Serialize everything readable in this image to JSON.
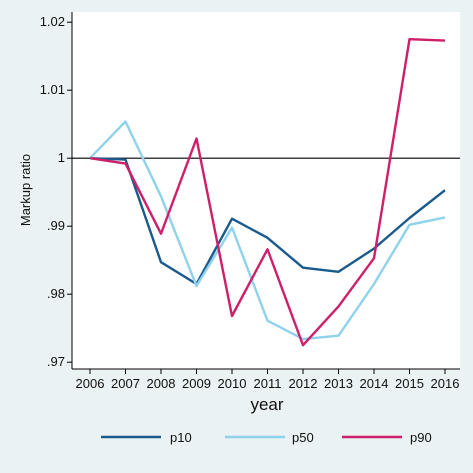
{
  "chart_data": {
    "type": "line",
    "xlabel": "year",
    "ylabel": "Markup ratio",
    "x": [
      2006,
      2007,
      2008,
      2009,
      2010,
      2011,
      2012,
      2013,
      2014,
      2015,
      2016
    ],
    "xticks": [
      "2006",
      "2007",
      "2008",
      "2009",
      "2010",
      "2011",
      "2012",
      "2013",
      "2014",
      "2015",
      "2016"
    ],
    "yticks": [
      ".97",
      ".98",
      ".99",
      "1",
      "1.01",
      "1.02"
    ],
    "ytick_values": [
      0.97,
      0.98,
      0.99,
      1.0,
      1.01,
      1.02
    ],
    "ylim": [
      0.969,
      1.0215
    ],
    "xlim": [
      2006,
      2016
    ],
    "reference_line": 1.0,
    "grid": false,
    "legend_position": "bottom",
    "series": [
      {
        "name": "p10",
        "color": "#1a5a8c",
        "values": [
          1.0,
          0.9998,
          0.9847,
          0.9815,
          0.9911,
          0.9883,
          0.9839,
          0.9833,
          0.9867,
          0.9912,
          0.9953
        ]
      },
      {
        "name": "p50",
        "color": "#8fd2ec",
        "values": [
          1.0,
          1.0054,
          0.9944,
          0.9812,
          0.9898,
          0.9761,
          0.9734,
          0.9739,
          0.9815,
          0.9902,
          0.9913
        ]
      },
      {
        "name": "p90",
        "color": "#d01f6a",
        "values": [
          1.0,
          0.9992,
          0.9889,
          1.0029,
          0.9768,
          0.9866,
          0.9725,
          0.9782,
          0.9853,
          1.0175,
          1.0173
        ]
      }
    ]
  }
}
